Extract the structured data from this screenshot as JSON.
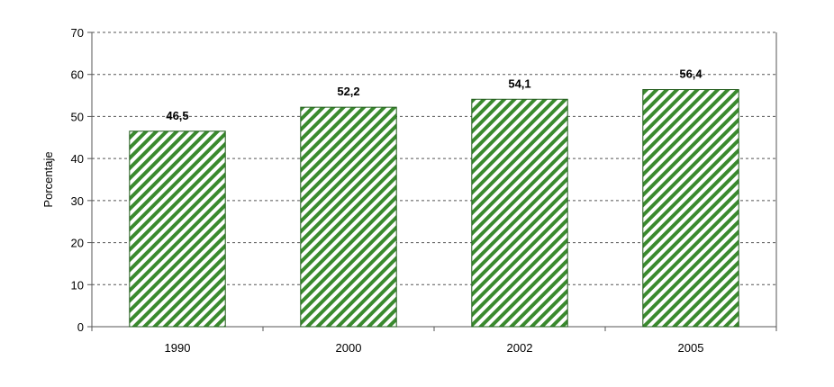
{
  "chart_data": {
    "type": "bar",
    "categories": [
      "1990",
      "2000",
      "2002",
      "2005"
    ],
    "values": [
      46.5,
      52.2,
      54.1,
      56.4
    ],
    "data_labels": [
      "46,5",
      "52,2",
      "54,1",
      "56,4"
    ],
    "title": "",
    "xlabel": "",
    "ylabel": "Porcentaje",
    "ylim": [
      0,
      70
    ],
    "yticks": [
      0,
      10,
      20,
      30,
      40,
      50,
      60,
      70
    ],
    "grid": "dashed horizontal",
    "legend": "none",
    "colors": {
      "bar_stripe": "#3a8a2e",
      "bar_fill": "#ffffff",
      "bar_border": "#1f5a1a",
      "grid": "#555555",
      "axis": "#555555"
    }
  }
}
